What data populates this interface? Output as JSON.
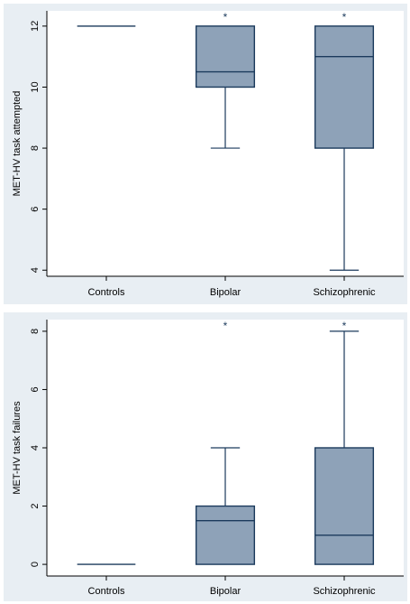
{
  "chart_data": [
    {
      "type": "box",
      "ylabel": "MET-HV task attempted",
      "ylim": [
        3.8,
        12.5
      ],
      "yticks": [
        4,
        6,
        8,
        10,
        12
      ],
      "categories": [
        "Controls",
        "Bipolar",
        "Schizophrenic"
      ],
      "boxes": [
        {
          "category": "Controls",
          "min": 12,
          "q1": 12,
          "median": 12,
          "q3": 12,
          "max": 12,
          "outliers": []
        },
        {
          "category": "Bipolar",
          "min": 8,
          "q1": 10,
          "median": 10.5,
          "q3": 12,
          "max": 12,
          "outliers": [
            "*"
          ]
        },
        {
          "category": "Schizophrenic",
          "min": 4,
          "q1": 8,
          "median": 11,
          "q3": 12,
          "max": 12,
          "outliers": [
            "*"
          ]
        }
      ],
      "outlier_symbol": "*"
    },
    {
      "type": "box",
      "ylabel": "MET-HV task failures",
      "ylim": [
        -0.4,
        8.4
      ],
      "yticks": [
        0,
        2,
        4,
        6,
        8
      ],
      "categories": [
        "Controls",
        "Bipolar",
        "Schizophrenic"
      ],
      "boxes": [
        {
          "category": "Controls",
          "min": 0,
          "q1": 0,
          "median": 0,
          "q3": 0,
          "max": 0,
          "outliers": []
        },
        {
          "category": "Bipolar",
          "min": 0,
          "q1": 0,
          "median": 1.5,
          "q3": 2,
          "max": 4,
          "outliers": [
            "*"
          ]
        },
        {
          "category": "Schizophrenic",
          "min": 0,
          "q1": 0,
          "median": 1,
          "q3": 4,
          "max": 8,
          "outliers": [
            "*"
          ]
        }
      ],
      "outlier_symbol": "*"
    }
  ]
}
